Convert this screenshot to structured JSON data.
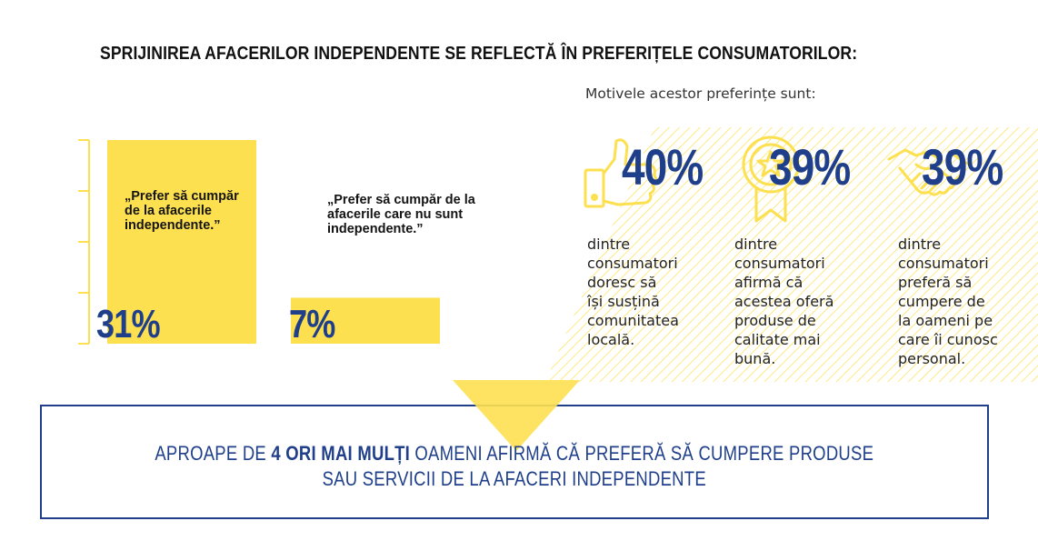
{
  "title": "SPRIJINIREA AFACERILOR INDEPENDENTE SE REFLECTĂ ÎN PREFERIȚELE CONSUMATORILOR:",
  "subtitle": "Motivele acestor preferințe sunt:",
  "colors": {
    "yellow": "#fde050",
    "navy": "#1f3f8a",
    "text": "#141414"
  },
  "chart_data": {
    "type": "bar",
    "categories": [
      "„Prefer să cumpăr de la afacerile independente.”",
      "„Prefer să cumpăr de la afacerile care nu sunt independente.”"
    ],
    "values": [
      31,
      7
    ],
    "value_labels": [
      "31%",
      "7%"
    ],
    "ylim": [
      0,
      31
    ],
    "label_lines": [
      [
        "„Prefer să cumpăr",
        "de la afacerile",
        "independente.”"
      ],
      [
        "„Prefer să cumpăr de la",
        "afacerile care nu sunt",
        "independente.”"
      ]
    ]
  },
  "reasons": [
    {
      "icon": "thumbs-up-icon",
      "value": "40%",
      "description": "dintre\nconsumatori\ndoresc să\nîși susțină\ncomunitatea\nlocală."
    },
    {
      "icon": "award-ribbon-icon",
      "value": "39%",
      "description": "dintre\nconsumatori\nafirmă că\nacestea oferă\nproduse de\ncalitate mai\nbună."
    },
    {
      "icon": "handshake-icon",
      "value": "39%",
      "description": "dintre\nconsumatori\npreferă să\ncumpere de\nla oameni pe\ncare îi cunosc\npersonal."
    }
  ],
  "conclusion": {
    "prefix": "APROAPE DE ",
    "highlight": "4 ORI MAI MULȚI",
    "middle": " OAMENI AFIRMĂ CĂ PREFERĂ SĂ CUMPERE PRODUSE",
    "line2": "SAU SERVICII DE LA AFACERI INDEPENDENTE"
  }
}
